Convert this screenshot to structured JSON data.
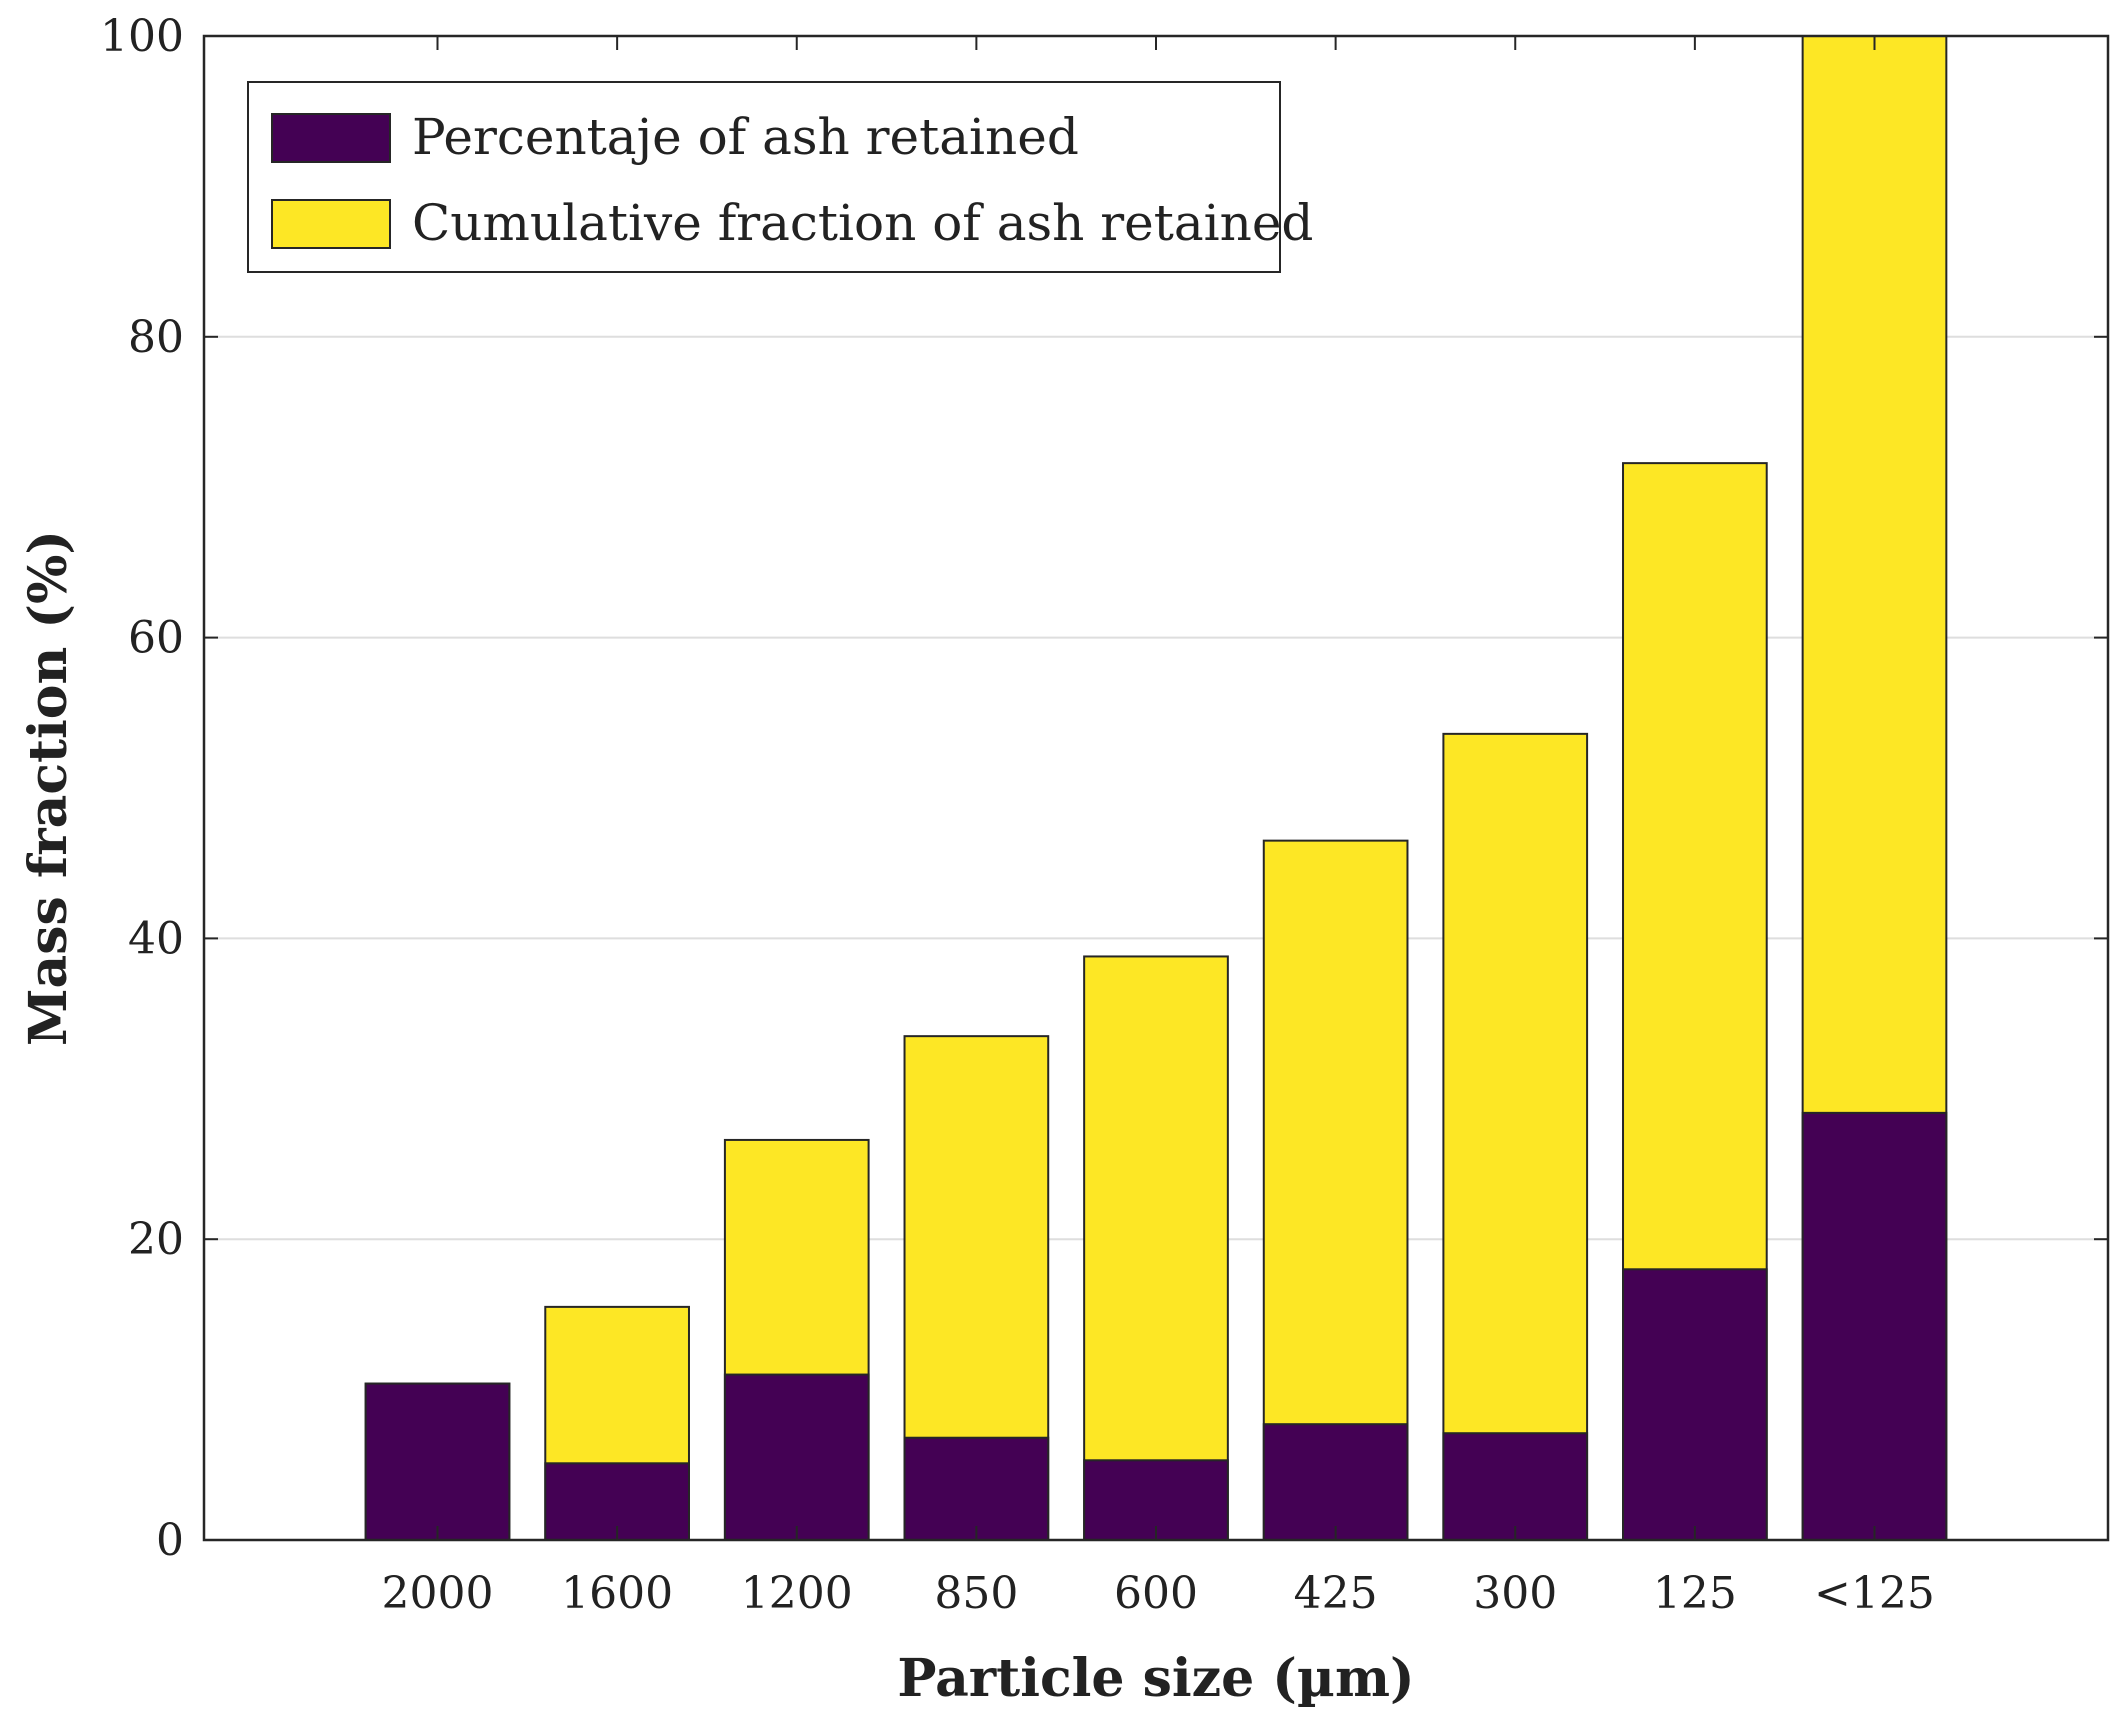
{
  "chart_data": {
    "type": "bar",
    "stacking": "overlay",
    "title": "",
    "xlabel": "Particle size (µm)",
    "ylabel": "Mass fraction (%)",
    "categories": [
      "2000",
      "1600",
      "1200",
      "850",
      "600",
      "425",
      "300",
      "125",
      "<125"
    ],
    "ylim": [
      0,
      100
    ],
    "yticks": [
      "0",
      "20",
      "40",
      "60",
      "80",
      "100"
    ],
    "grid": true,
    "legend_position": "top-left",
    "series": [
      {
        "name": "Cumulative fraction of ash retained",
        "color": "#fde725",
        "values": [
          10.4,
          15.5,
          26.6,
          33.5,
          38.8,
          46.5,
          53.6,
          71.6,
          100.0
        ]
      },
      {
        "name": "Percentaje of ash retained",
        "color": "#440154",
        "values": [
          10.4,
          5.1,
          11.0,
          6.8,
          5.3,
          7.7,
          7.1,
          18.0,
          28.4
        ]
      }
    ],
    "legend": [
      {
        "label": "Percentaje of ash retained",
        "color": "#440154"
      },
      {
        "label": "Cumulative fraction of ash retained",
        "color": "#fde725"
      }
    ]
  }
}
